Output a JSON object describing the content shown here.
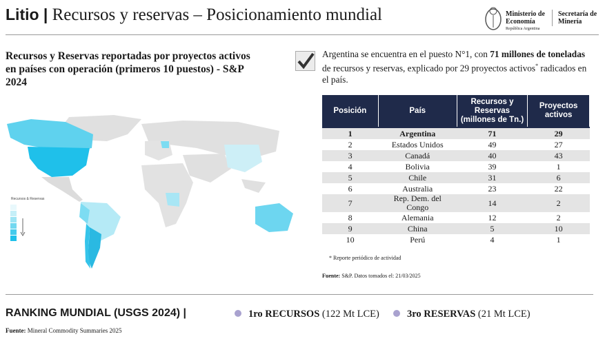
{
  "header": {
    "title_bold": "Litio |",
    "title": "Recursos y reservas – Posicionamiento mundial",
    "logo_ministry": "Ministerio de Economía",
    "logo_country": "República Argentina",
    "logo_secretariat": "Secretaría de Minería"
  },
  "map_section": {
    "heading": "Recursos y Reservas reportadas por proyectos activos en países con operación (primeros 10 puestos) - S&P 2024",
    "legend_title": "Recursos & Reservas"
  },
  "summary": {
    "text_start": "Argentina se encuentra en el puesto N°1, con",
    "text_bold": "71 millones de toneladas",
    "text_middle": "de recursos y reservas, explicado por 29 proyectos activos",
    "text_mark": "*",
    "text_end": "radicados en el país."
  },
  "table": {
    "columns": [
      "Posición",
      "País",
      "Recursos y Reservas (millones de Tn.)",
      "Proyectos activos"
    ],
    "rows": [
      [
        1,
        "Argentina",
        71,
        29
      ],
      [
        2,
        "Estados Unidos",
        49,
        27
      ],
      [
        3,
        "Canadá",
        40,
        43
      ],
      [
        4,
        "Bolivia",
        39,
        1
      ],
      [
        5,
        "Chile",
        31,
        6
      ],
      [
        6,
        "Australia",
        23,
        22
      ],
      [
        7,
        "Rep. Dem. del Congo",
        14,
        2
      ],
      [
        8,
        "Alemania",
        12,
        2
      ],
      [
        9,
        "China",
        5,
        10
      ],
      [
        10,
        "Perú",
        4,
        1
      ]
    ],
    "footnote": "* Reporte periódico de actividad",
    "source_label": "Fuente:",
    "source": "S&P. Datos tomados el: 21/03/2025"
  },
  "ranking": {
    "title": "RANKING MUNDIAL (USGS 2024) |",
    "items": [
      {
        "bold": "1ro RECURSOS",
        "text": "(122 Mt LCE)"
      },
      {
        "bold": "3ro RESERVAS",
        "text": "(21 Mt LCE)"
      }
    ],
    "source_label": "Fuente:",
    "source": "Mineral Commodity Summaries 2025"
  }
}
